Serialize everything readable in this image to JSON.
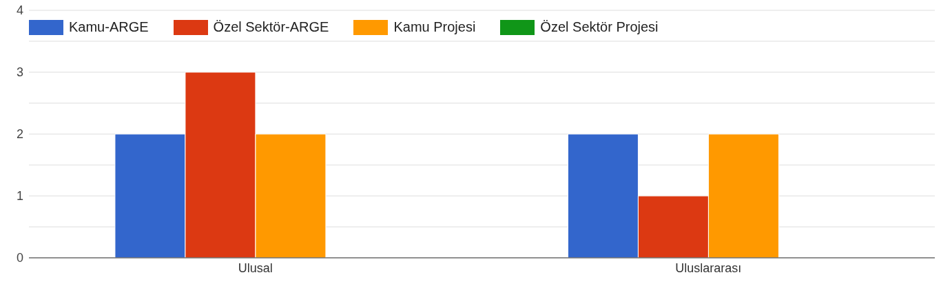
{
  "chart_data": {
    "type": "bar",
    "categories": [
      "Ulusal",
      "Uluslararası"
    ],
    "series": [
      {
        "name": "Kamu-ARGE",
        "color": "#3366cc",
        "values": [
          2,
          2
        ]
      },
      {
        "name": "Özel Sektör-ARGE",
        "color": "#dc3912",
        "values": [
          3,
          1
        ]
      },
      {
        "name": "Kamu Projesi",
        "color": "#ff9900",
        "values": [
          2,
          2
        ]
      },
      {
        "name": "Özel Sektör Projesi",
        "color": "#109618",
        "values": [
          0,
          0
        ]
      }
    ],
    "ylim": [
      0,
      4
    ],
    "yticks": [
      0,
      {
        "value": 0.5,
        "label": null
      },
      1,
      {
        "value": 1.5,
        "label": null
      },
      2,
      {
        "value": 2.5,
        "label": null
      },
      3,
      {
        "value": 3.5,
        "label": null
      },
      4
    ],
    "grid": "y",
    "legend": "top left"
  }
}
